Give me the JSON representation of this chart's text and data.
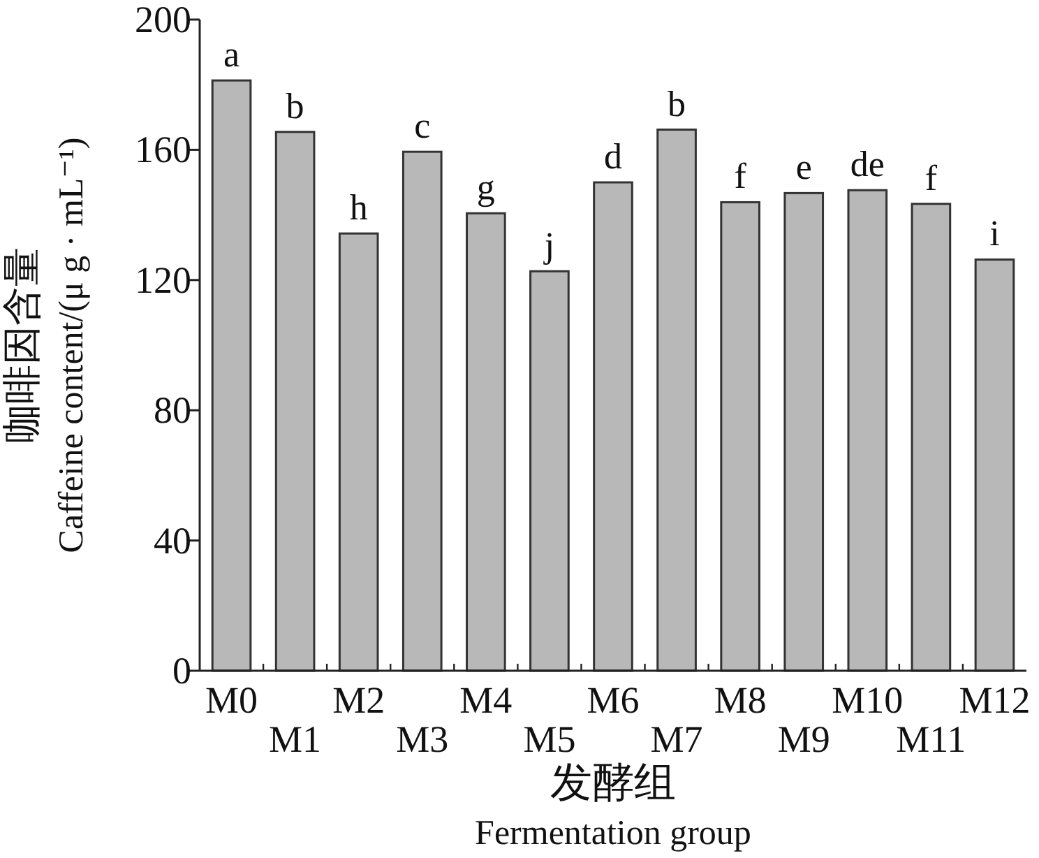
{
  "chart_data": {
    "type": "bar",
    "xlabel": "发酵组\nFermentation group",
    "ylabel": "咖啡因含量\nCaffeine content/(μ g · mL⁻¹)",
    "categories": [
      "M0",
      "M1",
      "M2",
      "M3",
      "M4",
      "M5",
      "M6",
      "M7",
      "M8",
      "M9",
      "M10",
      "M11",
      "M12"
    ],
    "values": [
      181.3,
      165.5,
      134.3,
      159.4,
      140.5,
      122.7,
      150,
      166.2,
      143.9,
      146.7,
      147.6,
      143.4,
      126.3
    ],
    "color": "#b8b8b8",
    "ylim": [
      0,
      200
    ],
    "yticks": [
      0,
      40,
      80,
      120,
      160,
      200
    ],
    "annotations": [
      {
        "text": "a",
        "x": "M0",
        "y": 181.3
      },
      {
        "text": "b",
        "x": "M1",
        "y": 165.5
      },
      {
        "text": "h",
        "x": "M2",
        "y": 134.3
      },
      {
        "text": "c",
        "x": "M3",
        "y": 159.4
      },
      {
        "text": "g",
        "x": "M4",
        "y": 140.5
      },
      {
        "text": "j",
        "x": "M5",
        "y": 122.7
      },
      {
        "text": "d",
        "x": "M6",
        "y": 150
      },
      {
        "text": "b",
        "x": "M7",
        "y": 166.2
      },
      {
        "text": "f",
        "x": "M8",
        "y": 143.9
      },
      {
        "text": "e",
        "x": "M9",
        "y": 146.7
      },
      {
        "text": "de",
        "x": "M10",
        "y": 147.6
      },
      {
        "text": "f",
        "x": "M11",
        "y": 143.4
      },
      {
        "text": "i",
        "x": "M12",
        "y": 126.3
      }
    ]
  }
}
